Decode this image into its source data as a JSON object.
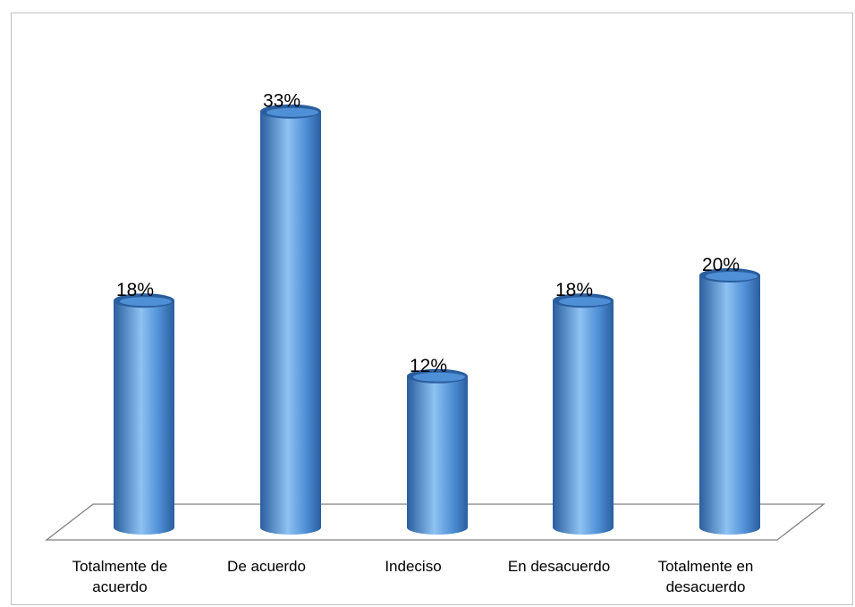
{
  "chart_data": {
    "type": "bar",
    "style": "3d-cylinder",
    "title": "",
    "xlabel": "",
    "ylabel": "",
    "categories": [
      "Totalmente de acuerdo",
      "De acuerdo",
      "Indeciso",
      "En desacuerdo",
      "Totalmente en desacuerdo"
    ],
    "category_lines": [
      [
        "Totalmente de",
        "acuerdo"
      ],
      [
        "De acuerdo"
      ],
      [
        "Indeciso"
      ],
      [
        "En desacuerdo"
      ],
      [
        "Totalmente en",
        "desacuerdo"
      ]
    ],
    "values": [
      18,
      33,
      12,
      18,
      20
    ],
    "value_labels": [
      "18%",
      "33%",
      "12%",
      "18%",
      "20%"
    ],
    "unit": "%",
    "ylim": [
      0,
      35
    ],
    "grid": false,
    "legend": "none",
    "bar_color": "#4f8fd6",
    "bar_highlight": "#8ec2f2",
    "bar_shadow": "#2a5e9e",
    "floor_color": "#808080"
  }
}
